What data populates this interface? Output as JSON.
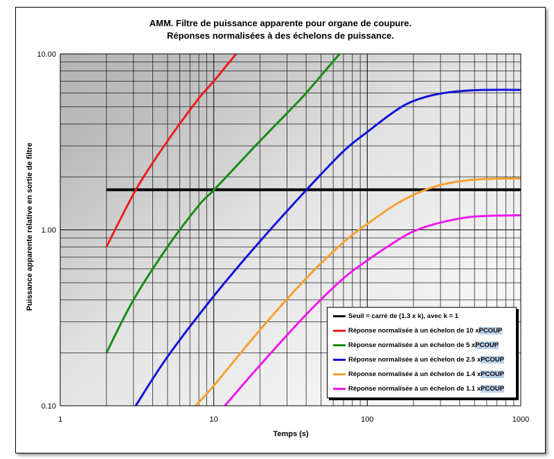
{
  "chart_data": {
    "type": "line",
    "title": "AMM. Filtre de puissance apparente pour organe de coupure.",
    "subtitle": "Réponses normalisées à des échelons de puissance.",
    "xlabel": "Temps (s)",
    "ylabel": "Puissance apparente relative en sortie de filtre",
    "x_scale": "log",
    "y_scale": "log",
    "xlim": [
      1,
      1000
    ],
    "ylim": [
      0.1,
      10
    ],
    "x_ticks": [
      "1",
      "10",
      "100",
      "1000"
    ],
    "y_ticks": [
      "0.10",
      "1.00",
      "10.00"
    ],
    "grid": true,
    "legend_position": "bottom-right",
    "series": [
      {
        "name": "Seuil = carré de (1.3 x k), avec k = 1",
        "color": "#000000",
        "points": [
          [
            2,
            1.69
          ],
          [
            1000,
            1.69
          ]
        ]
      },
      {
        "name": "Réponse normalisée à un échelon de 10 x PCOUP",
        "label_main": "Réponse normalisée à un échelon de 10 x ",
        "label_tag": "PCOUP",
        "color": "#ee1c1c",
        "points": [
          [
            2,
            0.8
          ],
          [
            3,
            1.6
          ],
          [
            4,
            2.4
          ],
          [
            5,
            3.2
          ],
          [
            6,
            4.0
          ],
          [
            8,
            5.6
          ],
          [
            10,
            7.0
          ],
          [
            12,
            8.5
          ],
          [
            14,
            10.0
          ]
        ]
      },
      {
        "name": "Réponse normalisée à un échelon de 5 x PCOUP",
        "label_main": "Réponse normalisée à un échelon de 5 x ",
        "label_tag": "PCOUP",
        "color": "#168c16",
        "points": [
          [
            2,
            0.2
          ],
          [
            3,
            0.4
          ],
          [
            5,
            0.8
          ],
          [
            8,
            1.38
          ],
          [
            10,
            1.68
          ],
          [
            15,
            2.45
          ],
          [
            20,
            3.2
          ],
          [
            30,
            4.6
          ],
          [
            40,
            6.0
          ],
          [
            55,
            8.3
          ],
          [
            66,
            10.0
          ]
        ]
      },
      {
        "name": "Réponse normalisée à un échelon de 2.5 x PCOUP",
        "label_main": "Réponse normalisée à un échelon de 2.5 x ",
        "label_tag": "PCOUP",
        "color": "#1010d8",
        "points": [
          [
            3.1,
            0.1
          ],
          [
            5,
            0.19
          ],
          [
            10,
            0.42
          ],
          [
            20,
            0.86
          ],
          [
            40,
            1.68
          ],
          [
            70,
            2.8
          ],
          [
            100,
            3.6
          ],
          [
            150,
            4.7
          ],
          [
            200,
            5.4
          ],
          [
            300,
            5.95
          ],
          [
            500,
            6.22
          ],
          [
            1000,
            6.25
          ]
        ]
      },
      {
        "name": "Réponse normalisée à un échelon de 1.4 x PCOUP",
        "label_main": "Réponse normalisée à un échelon de 1.4 x ",
        "label_tag": "PCOUP",
        "color": "#f6a030",
        "points": [
          [
            7.6,
            0.1
          ],
          [
            10,
            0.13
          ],
          [
            20,
            0.27
          ],
          [
            40,
            0.53
          ],
          [
            70,
            0.85
          ],
          [
            100,
            1.08
          ],
          [
            150,
            1.38
          ],
          [
            200,
            1.58
          ],
          [
            300,
            1.8
          ],
          [
            500,
            1.93
          ],
          [
            1000,
            1.96
          ]
        ]
      },
      {
        "name": "Réponse normalisée à un échelon de 1.1 x PCOUP",
        "label_main": "Réponse normalisée à un échelon de 1.1 x ",
        "label_tag": "PCOUP",
        "color": "#ee18ee",
        "points": [
          [
            11.8,
            0.1
          ],
          [
            20,
            0.17
          ],
          [
            40,
            0.33
          ],
          [
            70,
            0.53
          ],
          [
            100,
            0.67
          ],
          [
            150,
            0.85
          ],
          [
            200,
            0.98
          ],
          [
            300,
            1.1
          ],
          [
            500,
            1.19
          ],
          [
            1000,
            1.21
          ]
        ]
      }
    ]
  }
}
